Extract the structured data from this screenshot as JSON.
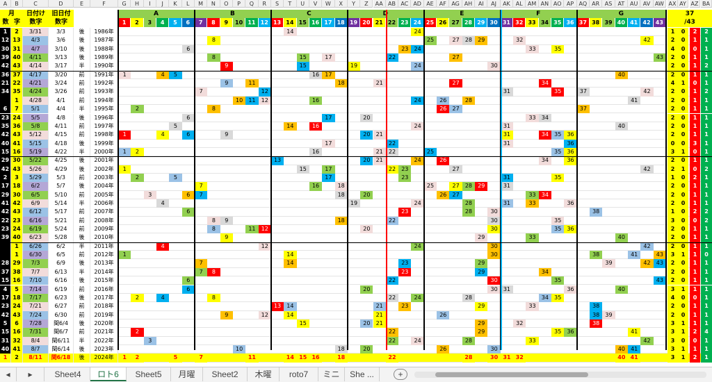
{
  "sheet": {
    "columns": [
      "A",
      "B",
      "C",
      "D",
      "E",
      "F",
      "G",
      "H",
      "I",
      "J",
      "K",
      "L",
      "M",
      "N",
      "O",
      "P",
      "Q",
      "R",
      "S",
      "T",
      "U",
      "V",
      "W",
      "X",
      "Y",
      "Z",
      "AA",
      "AB",
      "AC",
      "AD",
      "AE",
      "AF",
      "AG",
      "AH",
      "AI",
      "AJ",
      "AK",
      "AL",
      "AM",
      "AN",
      "AO",
      "AP",
      "AQ",
      "AR",
      "AS",
      "AT",
      "AU",
      "AV",
      "AW",
      "AX",
      "AY",
      "AZ",
      "BA"
    ],
    "groups": [
      "A",
      "B",
      "C",
      "D",
      "E",
      "F",
      "G"
    ],
    "headers": {
      "month_label": "月",
      "day_label": "日付け",
      "old_day_label": "旧日付",
      "num_label": "数",
      "num_label2": "字",
      "num_label3": "数字",
      "num_label4": "数字",
      "count_top": "37",
      "count_sub": "/43"
    },
    "numbers": [
      "1",
      "2",
      "3",
      "4",
      "5",
      "6",
      "7",
      "8",
      "9",
      "10",
      "11",
      "12",
      "13",
      "14",
      "15",
      "16",
      "17",
      "18",
      "19",
      "20",
      "21",
      "22",
      "23",
      "24",
      "25",
      "26",
      "27",
      "28",
      "29",
      "30",
      "31",
      "32",
      "33",
      "34",
      "35",
      "36",
      "37",
      "38",
      "39",
      "40",
      "41",
      "42",
      "43"
    ],
    "rows": [
      {
        "a": "1",
        "b": "2",
        "c": "3/31",
        "d": "3/3",
        "e": "後",
        "f": "1986年"
      },
      {
        "a": "12",
        "b": "13",
        "c": "4/3",
        "d": "3/6",
        "e": "後",
        "f": "1987年"
      },
      {
        "a": "30",
        "b": "31",
        "c": "4/7",
        "d": "3/10",
        "e": "後",
        "f": "1988年"
      },
      {
        "a": "39",
        "b": "40",
        "c": "4/11",
        "d": "3/13",
        "e": "後",
        "f": "1989年"
      },
      {
        "a": "42",
        "b": "43",
        "c": "4/14",
        "d": "3/17",
        "e": "半",
        "f": "1990年"
      },
      {
        "a": "36",
        "b": "37",
        "c": "4/17",
        "d": "3/20",
        "e": "前",
        "f": "1991年"
      },
      {
        "a": "21",
        "b": "22",
        "c": "4/21",
        "d": "3/24",
        "e": "前",
        "f": "1992年"
      },
      {
        "a": "34",
        "b": "35",
        "c": "4/24",
        "d": "3/26",
        "e": "前",
        "f": "1993年"
      },
      {
        "a": "",
        "b": "1",
        "c": "4/28",
        "d": "4/1",
        "e": "前",
        "f": "1994年"
      },
      {
        "a": "6",
        "b": "7",
        "c": "5/1",
        "d": "4/4",
        "e": "半",
        "f": "1995年"
      },
      {
        "a": "23",
        "b": "24",
        "c": "5/5",
        "d": "4/8",
        "e": "後",
        "f": "1996年"
      },
      {
        "a": "35",
        "b": "36",
        "c": "5/8",
        "d": "4/11",
        "e": "前",
        "f": "1997年"
      },
      {
        "a": "42",
        "b": "43",
        "c": "5/12",
        "d": "4/15",
        "e": "前",
        "f": "1998年"
      },
      {
        "a": "40",
        "b": "41",
        "c": "5/15",
        "d": "4/18",
        "e": "後",
        "f": "1999年"
      },
      {
        "a": "15",
        "b": "16",
        "c": "5/19",
        "d": "4/22",
        "e": "半",
        "f": "2000年"
      },
      {
        "a": "29",
        "b": "30",
        "c": "5/22",
        "d": "4/25",
        "e": "後",
        "f": "2001年"
      },
      {
        "a": "42",
        "b": "43",
        "c": "5/26",
        "d": "4/29",
        "e": "後",
        "f": "2002年"
      },
      {
        "a": "2",
        "b": "3",
        "c": "5/29",
        "d": "5/3",
        "e": "前",
        "f": "2003年"
      },
      {
        "a": "17",
        "b": "18",
        "c": "6/2",
        "d": "5/7",
        "e": "後",
        "f": "2004年"
      },
      {
        "a": "29",
        "b": "30",
        "c": "6/5",
        "d": "5/10",
        "e": "前",
        "f": "2005年"
      },
      {
        "a": "41",
        "b": "42",
        "c": "6/9",
        "d": "5/14",
        "e": "半",
        "f": "2006年"
      },
      {
        "a": "42",
        "b": "43",
        "c": "6/12",
        "d": "5/17",
        "e": "前",
        "f": "2007年"
      },
      {
        "a": "22",
        "b": "23",
        "c": "6/16",
        "d": "5/21",
        "e": "前",
        "f": "2008年"
      },
      {
        "a": "23",
        "b": "24",
        "c": "6/19",
        "d": "5/24",
        "e": "前",
        "f": "2009年"
      },
      {
        "a": "39",
        "b": "40",
        "c": "6/23",
        "d": "5/28",
        "e": "後",
        "f": "2010年"
      },
      {
        "a": "",
        "b": "1",
        "c": "6/26",
        "d": "6/2",
        "e": "半",
        "f": "2011年"
      },
      {
        "a": "",
        "b": "1",
        "c": "6/30",
        "d": "6/5",
        "e": "前",
        "f": "2012年"
      },
      {
        "a": "28",
        "b": "29",
        "c": "7/3",
        "d": "6/9",
        "e": "後",
        "f": "2013年"
      },
      {
        "a": "37",
        "b": "38",
        "c": "7/7",
        "d": "6/13",
        "e": "半",
        "f": "2014年"
      },
      {
        "a": "15",
        "b": "16",
        "c": "7/10",
        "d": "6/16",
        "e": "後",
        "f": "2015年"
      },
      {
        "a": "4",
        "b": "5",
        "c": "7/14",
        "d": "6/19",
        "e": "前",
        "f": "2016年"
      },
      {
        "a": "17",
        "b": "18",
        "c": "7/17",
        "d": "6/23",
        "e": "後",
        "f": "2017年"
      },
      {
        "a": "23",
        "b": "24",
        "c": "7/21",
        "d": "6/27",
        "e": "前",
        "f": "2018年"
      },
      {
        "a": "42",
        "b": "43",
        "c": "7/24",
        "d": "6/30",
        "e": "前",
        "f": "2019年"
      },
      {
        "a": "5",
        "b": "6",
        "c": "7/28",
        "d": "閏6/4",
        "e": "後",
        "f": "2020年"
      },
      {
        "a": "15",
        "b": "16",
        "c": "7/31",
        "d": "閏6/7",
        "e": "前",
        "f": "2021年"
      },
      {
        "a": "31",
        "b": "32",
        "c": "8/4",
        "d": "閏6/11",
        "e": "半",
        "f": "2022年"
      },
      {
        "a": "40",
        "b": "41",
        "c": "8/7",
        "d": "閏6/14",
        "e": "後",
        "f": "2023年"
      },
      {
        "a": "1",
        "b": "2",
        "c": "8/11",
        "d": "閏6/18",
        "e": "後",
        "f": "2024年"
      }
    ],
    "stats": [
      [
        "1",
        "0",
        "2",
        "2"
      ],
      [
        "2",
        "0",
        "1",
        "1"
      ],
      [
        "4",
        "0",
        "0",
        "1"
      ],
      [
        "2",
        "0",
        "1",
        "1"
      ],
      [
        "2",
        "0",
        "1",
        "2"
      ],
      [
        "2",
        "0",
        "1",
        "1"
      ],
      [
        "4",
        "1",
        "0",
        "1"
      ],
      [
        "2",
        "0",
        "1",
        "2"
      ],
      [
        "2",
        "0",
        "1",
        "1"
      ],
      [
        "2",
        "0",
        "1",
        "1"
      ],
      [
        "2",
        "0",
        "1",
        "1"
      ],
      [
        "2",
        "0",
        "1",
        "1"
      ],
      [
        "2",
        "0",
        "1",
        "1"
      ],
      [
        "0",
        "0",
        "3",
        "1"
      ],
      [
        "3",
        "1",
        "0",
        "1"
      ],
      [
        "2",
        "0",
        "1",
        "1"
      ],
      [
        "2",
        "1",
        "0",
        "2"
      ],
      [
        "1",
        "0",
        "2",
        "1"
      ],
      [
        "2",
        "0",
        "1",
        "1"
      ],
      [
        "2",
        "0",
        "1",
        "1"
      ],
      [
        "2",
        "0",
        "1",
        "1"
      ],
      [
        "1",
        "0",
        "2",
        "2"
      ],
      [
        "3",
        "0",
        "0",
        "2"
      ],
      [
        "2",
        "0",
        "1",
        "1"
      ],
      [
        "2",
        "0",
        "1",
        "1"
      ],
      [
        "2",
        "0",
        "1",
        "1"
      ],
      [
        "3",
        "1",
        "1",
        "0"
      ],
      [
        "2",
        "0",
        "1",
        "1"
      ],
      [
        "2",
        "0",
        "1",
        "1"
      ],
      [
        "2",
        "0",
        "1",
        "1"
      ],
      [
        "3",
        "1",
        "1",
        "1"
      ],
      [
        "4",
        "0",
        "0",
        "1"
      ],
      [
        "2",
        "0",
        "1",
        "1"
      ],
      [
        "2",
        "0",
        "1",
        "1"
      ],
      [
        "3",
        "1",
        "1",
        "1"
      ],
      [
        "3",
        "1",
        "2",
        "4"
      ],
      [
        "3",
        "0",
        "0",
        "1"
      ],
      [
        "3",
        "1",
        "1",
        "1"
      ],
      [
        "3",
        "1",
        "2",
        "1"
      ]
    ],
    "marks": [
      [
        "14",
        "24"
      ],
      [
        "8",
        "25",
        "27",
        "28",
        "29",
        "32",
        "42"
      ],
      [
        "6",
        "23",
        "24",
        "33",
        "35"
      ],
      [
        "8",
        "15",
        "17",
        "22",
        "27",
        "43"
      ],
      [
        "9",
        "15",
        "19",
        "24",
        "30"
      ],
      [
        "1",
        "4",
        "5",
        "16",
        "17",
        "40"
      ],
      [
        "9",
        "11",
        "18",
        "21",
        "27",
        "34"
      ],
      [
        "7",
        "12",
        "31",
        "35",
        "37",
        "42"
      ],
      [
        "10",
        "11",
        "12",
        "16",
        "24",
        "26",
        "28",
        "41"
      ],
      [
        "2",
        "8",
        "26",
        "27",
        "37"
      ],
      [
        "6",
        "17",
        "20",
        "33",
        "34"
      ],
      [
        "5",
        "14",
        "16",
        "24",
        "31",
        "40"
      ],
      [
        "1",
        "4",
        "6",
        "9",
        "20",
        "21",
        "31",
        "34",
        "35",
        "36"
      ],
      [
        "17",
        "22",
        "31",
        "36"
      ],
      [
        "1",
        "2",
        "16",
        "21",
        "22",
        "25",
        "35",
        "36"
      ],
      [
        "13",
        "20",
        "21",
        "24",
        "26",
        "34",
        "36"
      ],
      [
        "1",
        "15",
        "17",
        "22",
        "23",
        "27",
        "42"
      ],
      [
        "2",
        "5",
        "17",
        "23",
        "31",
        "35"
      ],
      [
        "7",
        "16",
        "18",
        "25",
        "27",
        "28",
        "29",
        "31"
      ],
      [
        "3",
        "6",
        "7",
        "18",
        "20",
        "26",
        "27",
        "33",
        "34"
      ],
      [
        "4",
        "19",
        "24",
        "28",
        "31",
        "33",
        "36"
      ],
      [
        "6",
        "23",
        "28",
        "30",
        "38"
      ],
      [
        "8",
        "9",
        "18",
        "22",
        "30",
        "35"
      ],
      [
        "8",
        "11",
        "12",
        "20",
        "30",
        "35",
        "36"
      ],
      [
        "9",
        "29",
        "33",
        "40"
      ],
      [
        "4",
        "12",
        "24",
        "30",
        "42"
      ],
      [
        "1",
        "14",
        "30",
        "38",
        "41",
        "43"
      ],
      [
        "7",
        "14",
        "23",
        "29",
        "39",
        "42",
        "43"
      ],
      [
        "7",
        "8",
        "23",
        "29",
        "34"
      ],
      [
        "6",
        "22",
        "30",
        "35",
        "43"
      ],
      [
        "6",
        "20",
        "30",
        "31",
        "36",
        "40"
      ],
      [
        "2",
        "4",
        "8",
        "22",
        "24",
        "28",
        "34",
        "35"
      ],
      [
        "13",
        "14",
        "21",
        "23",
        "29",
        "33",
        "38"
      ],
      [
        "9",
        "12",
        "14",
        "21",
        "26",
        "38",
        "39"
      ],
      [
        "15",
        "20",
        "21",
        "29",
        "32",
        "38"
      ],
      [
        "2",
        "22",
        "29",
        "35",
        "36",
        "41"
      ],
      [
        "3",
        "22",
        "24",
        "28",
        "33",
        "42"
      ],
      [
        "10",
        "18",
        "20",
        "26",
        "30",
        "40",
        "41"
      ],
      [
        "1",
        "2",
        "5",
        "7",
        "11",
        "14",
        "15",
        "16",
        "18",
        "22",
        "28",
        "30",
        "31",
        "32",
        "40",
        "41"
      ]
    ]
  },
  "tabs": {
    "items": [
      "Sheet4",
      "ロト6",
      "Sheet5",
      "月曜",
      "Sheet2",
      "木曜",
      "roto7",
      "ミニ",
      "She ..."
    ],
    "active": 1,
    "add_label": "+"
  },
  "colors": {
    "group_header": "#92d050",
    "yellow": "#ffff00",
    "black": "#000000",
    "orange": "#ffc000",
    "red": "#ff0000",
    "blue": "#00b0f0",
    "pink": "#f2dcdb",
    "green": "#00b050",
    "lightgreen": "#92d050",
    "purple": "#7030a0",
    "gray": "#d0d0d0",
    "sheet_bg": "#ffffff"
  }
}
